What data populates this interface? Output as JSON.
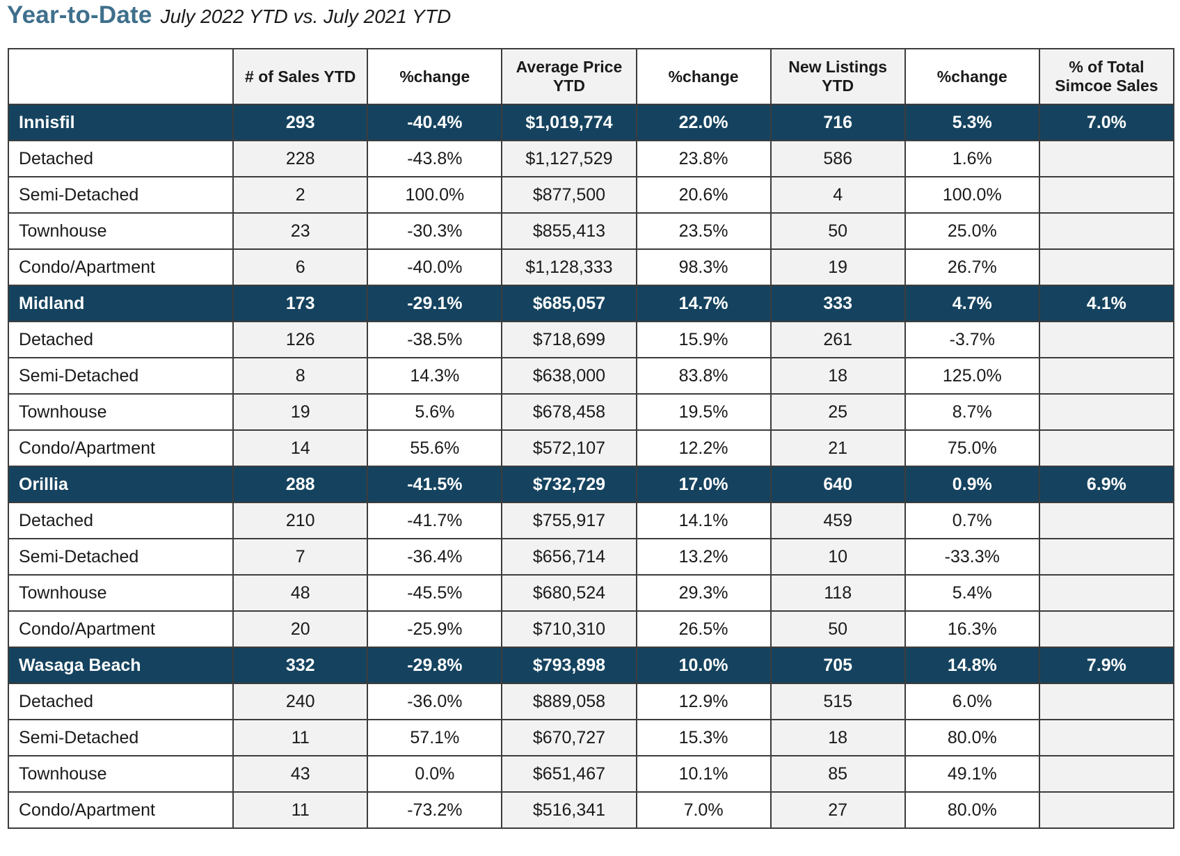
{
  "header": {
    "title": "Year-to-Date",
    "subtitle": "July 2022 YTD vs. July 2021 YTD"
  },
  "table": {
    "columns": [
      "",
      "# of Sales YTD",
      "%change",
      "Average Price YTD",
      "%change",
      "New Listings YTD",
      "%change",
      "% of Total Simcoe Sales"
    ],
    "areas": [
      {
        "name": "Innisfil",
        "values": [
          "293",
          "-40.4%",
          "$1,019,774",
          "22.0%",
          "716",
          "5.3%",
          "7.0%"
        ],
        "types": [
          {
            "name": "Detached",
            "values": [
              "228",
              "-43.8%",
              "$1,127,529",
              "23.8%",
              "586",
              "1.6%",
              ""
            ]
          },
          {
            "name": "Semi-Detached",
            "values": [
              "2",
              "100.0%",
              "$877,500",
              "20.6%",
              "4",
              "100.0%",
              ""
            ]
          },
          {
            "name": "Townhouse",
            "values": [
              "23",
              "-30.3%",
              "$855,413",
              "23.5%",
              "50",
              "25.0%",
              ""
            ]
          },
          {
            "name": "Condo/Apartment",
            "values": [
              "6",
              "-40.0%",
              "$1,128,333",
              "98.3%",
              "19",
              "26.7%",
              ""
            ]
          }
        ]
      },
      {
        "name": "Midland",
        "values": [
          "173",
          "-29.1%",
          "$685,057",
          "14.7%",
          "333",
          "4.7%",
          "4.1%"
        ],
        "types": [
          {
            "name": "Detached",
            "values": [
              "126",
              "-38.5%",
              "$718,699",
              "15.9%",
              "261",
              "-3.7%",
              ""
            ]
          },
          {
            "name": "Semi-Detached",
            "values": [
              "8",
              "14.3%",
              "$638,000",
              "83.8%",
              "18",
              "125.0%",
              ""
            ]
          },
          {
            "name": "Townhouse",
            "values": [
              "19",
              "5.6%",
              "$678,458",
              "19.5%",
              "25",
              "8.7%",
              ""
            ]
          },
          {
            "name": "Condo/Apartment",
            "values": [
              "14",
              "55.6%",
              "$572,107",
              "12.2%",
              "21",
              "75.0%",
              ""
            ]
          }
        ]
      },
      {
        "name": "Orillia",
        "values": [
          "288",
          "-41.5%",
          "$732,729",
          "17.0%",
          "640",
          "0.9%",
          "6.9%"
        ],
        "types": [
          {
            "name": "Detached",
            "values": [
              "210",
              "-41.7%",
              "$755,917",
              "14.1%",
              "459",
              "0.7%",
              ""
            ]
          },
          {
            "name": "Semi-Detached",
            "values": [
              "7",
              "-36.4%",
              "$656,714",
              "13.2%",
              "10",
              "-33.3%",
              ""
            ]
          },
          {
            "name": "Townhouse",
            "values": [
              "48",
              "-45.5%",
              "$680,524",
              "29.3%",
              "118",
              "5.4%",
              ""
            ]
          },
          {
            "name": "Condo/Apartment",
            "values": [
              "20",
              "-25.9%",
              "$710,310",
              "26.5%",
              "50",
              "16.3%",
              ""
            ]
          }
        ]
      },
      {
        "name": "Wasaga Beach",
        "values": [
          "332",
          "-29.8%",
          "$793,898",
          "10.0%",
          "705",
          "14.8%",
          "7.9%"
        ],
        "types": [
          {
            "name": "Detached",
            "values": [
              "240",
              "-36.0%",
              "$889,058",
              "12.9%",
              "515",
              "6.0%",
              ""
            ]
          },
          {
            "name": "Semi-Detached",
            "values": [
              "11",
              "57.1%",
              "$670,727",
              "15.3%",
              "18",
              "80.0%",
              ""
            ]
          },
          {
            "name": "Townhouse",
            "values": [
              "43",
              "0.0%",
              "$651,467",
              "10.1%",
              "85",
              "49.1%",
              ""
            ]
          },
          {
            "name": "Condo/Apartment",
            "values": [
              "11",
              "-73.2%",
              "$516,341",
              "7.0%",
              "27",
              "80.0%",
              ""
            ]
          }
        ]
      }
    ]
  },
  "colors": {
    "title": "#3f6f8c",
    "area_row_bg": "#15435f",
    "area_row_text": "#ffffff",
    "shaded_cell_bg": "#f2f2f2",
    "border": "#3c3c3c"
  }
}
